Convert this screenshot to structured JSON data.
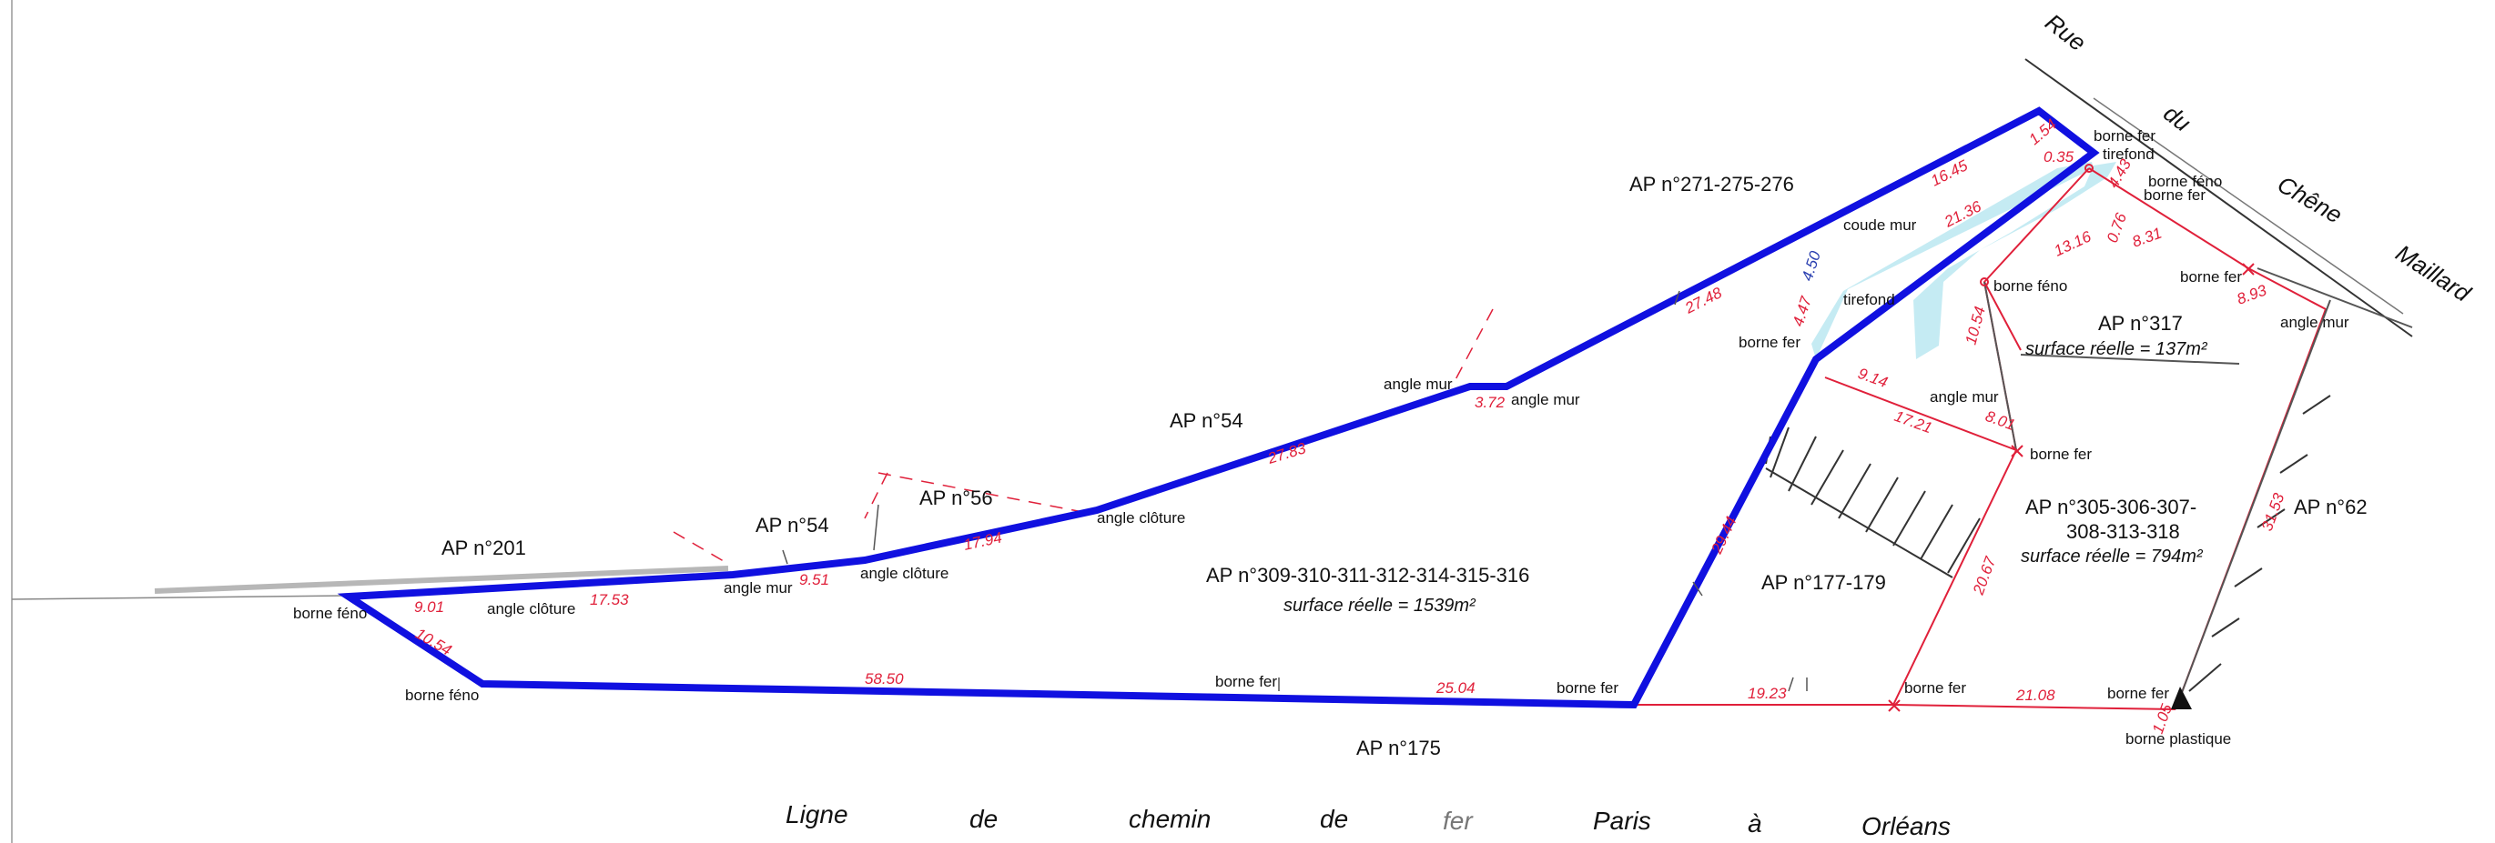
{
  "parcels": {
    "ap201": "AP n°201",
    "ap54_left": "AP n°54",
    "ap56": "AP n°56",
    "ap54_mid": "AP n°54",
    "ap271": "AP n°271-275-276",
    "ap317": "AP n°317",
    "ap317_surface": "surface réelle = 137m²",
    "ap309": "AP n°309-310-311-312-314-315-316",
    "ap309_surface": "surface réelle = 1539m²",
    "ap177": "AP n°177-179",
    "ap305_line1": "AP n°305-306-307-",
    "ap305_line2": "308-313-318",
    "ap305_surface": "surface réelle = 794m²",
    "ap62": "AP n°62",
    "ap175": "AP n°175"
  },
  "markers": {
    "borne_feno_1": "borne féno",
    "angle_cloture_1": "angle clôture",
    "angle_mur_1": "angle mur",
    "angle_cloture_2": "angle clôture",
    "angle_cloture_3": "angle clôture",
    "angle_mur_2": "angle mur",
    "angle_mur_3": "angle mur",
    "coude_mur": "coude mur",
    "borne_fer_top": "borne fer",
    "tirefond_top": "tirefond",
    "borne_feno_top": "borne féno",
    "borne_fer_top2": "borne fer",
    "borne_feno_mid": "borne féno",
    "borne_fer_mid": "borne fer",
    "angle_mur_right": "angle mur",
    "tirefond_mid": "tirefond",
    "borne_fer_left": "borne fer",
    "angle_mur_4": "angle mur",
    "borne_fer_right": "borne fer",
    "borne_feno_bottom": "borne féno",
    "borne_fer_bottom1": "borne fer",
    "borne_fer_bottom2": "borne fer",
    "borne_fer_bottom3": "borne fer",
    "borne_fer_bottom4": "borne fer",
    "borne_plastique": "borne plastique"
  },
  "dimensions": {
    "d_9_01": "9.01",
    "d_17_53": "17.53",
    "d_9_51": "9.51",
    "d_17_94": "17.94",
    "d_27_83": "27.83",
    "d_3_72": "3.72",
    "d_27_48": "27.48",
    "d_16_45": "16.45",
    "d_1_54": "1.54",
    "d_0_35": "0.35",
    "d_4_43": "4.43",
    "d_21_36": "21.36",
    "d_13_16": "13.16",
    "d_0_76": "0.76",
    "d_8_31": "8.31",
    "d_8_93": "8.93",
    "d_4_50": "4.50",
    "d_4_47": "4.47",
    "d_10_54_top": "10.54",
    "d_9_14": "9.14",
    "d_17_21": "17.21",
    "d_8_01": "8.01",
    "d_29_44": "29.44",
    "d_20_67": "20.67",
    "d_31_53": "31.53",
    "d_10_54_left": "10.54",
    "d_58_50": "58.50",
    "d_25_04": "25.04",
    "d_19_23": "19.23",
    "d_21_08": "21.08",
    "d_1_05": "1.05"
  },
  "street": {
    "w1": "Rue",
    "w2": "du",
    "w3": "Chêne",
    "w4": "Maillard"
  },
  "railway": {
    "w1": "Ligne",
    "w2": "de",
    "w3": "chemin",
    "w4": "de",
    "w5": "fer",
    "w6": "Paris",
    "w7": "à",
    "w8": "Orléans"
  },
  "colors": {
    "boundary": "#1010e0",
    "dimension": "#e0203a",
    "highlight": "#bfe9f2",
    "ink": "#111111"
  }
}
